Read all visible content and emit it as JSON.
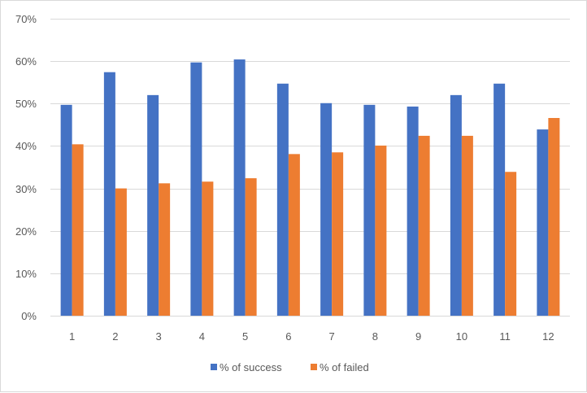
{
  "chart_data": {
    "type": "bar",
    "categories": [
      "1",
      "2",
      "3",
      "4",
      "5",
      "6",
      "7",
      "8",
      "9",
      "10",
      "11",
      "12"
    ],
    "series": [
      {
        "name": "% of success",
        "color": "#4472c4",
        "values": [
          49.7,
          57.4,
          52.0,
          59.7,
          60.4,
          54.7,
          50.1,
          49.7,
          49.3,
          52.0,
          54.7,
          43.9
        ]
      },
      {
        "name": "% of failed",
        "color": "#ed7d31",
        "values": [
          40.4,
          30.0,
          31.2,
          31.6,
          32.4,
          38.1,
          38.5,
          40.1,
          42.4,
          42.4,
          33.9,
          46.6
        ]
      }
    ],
    "ylim": [
      0,
      70
    ],
    "yticks": [
      0,
      10,
      20,
      30,
      40,
      50,
      60,
      70
    ],
    "ytick_labels": [
      "0%",
      "10%",
      "20%",
      "30%",
      "40%",
      "50%",
      "60%",
      "70%"
    ],
    "grid": true,
    "legend": "bottom-center",
    "title": "",
    "xlabel": "",
    "ylabel": ""
  }
}
